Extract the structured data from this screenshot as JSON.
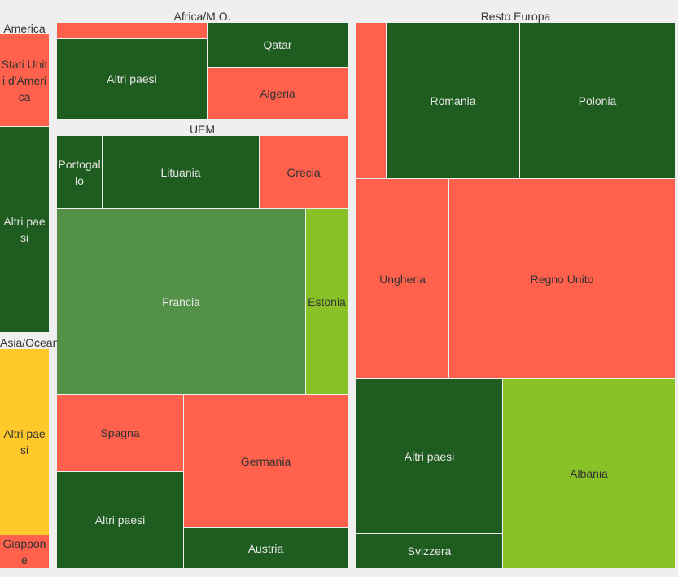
{
  "chart_data": {
    "type": "treemap",
    "colors": {
      "dark_green": "#1f5c1f",
      "medium_green": "#529147",
      "lime": "#88c226",
      "red": "#ff614d",
      "yellow": "#ffc82b"
    },
    "groups": [
      {
        "name": "America",
        "items": [
          {
            "label": "Stati Uniti d'America",
            "color": "red"
          },
          {
            "label": "Altri paesi",
            "color": "dark_green"
          }
        ]
      },
      {
        "name": "Asia/Oceania",
        "items": [
          {
            "label": "Altri paesi",
            "color": "yellow"
          },
          {
            "label": "Giappone",
            "color": "red"
          }
        ]
      },
      {
        "name": "Africa/M.O.",
        "items": [
          {
            "label": "",
            "color": "red"
          },
          {
            "label": "Altri paesi",
            "color": "dark_green"
          },
          {
            "label": "Qatar",
            "color": "dark_green"
          },
          {
            "label": "Algeria",
            "color": "red"
          }
        ]
      },
      {
        "name": "UEM",
        "items": [
          {
            "label": "Portogallo",
            "color": "dark_green"
          },
          {
            "label": "Lituania",
            "color": "dark_green"
          },
          {
            "label": "Grecia",
            "color": "red"
          },
          {
            "label": "Francia",
            "color": "medium_green"
          },
          {
            "label": "Estonia",
            "color": "lime"
          },
          {
            "label": "Spagna",
            "color": "red"
          },
          {
            "label": "Altri paesi",
            "color": "dark_green"
          },
          {
            "label": "Germania",
            "color": "red"
          },
          {
            "label": "Austria",
            "color": "dark_green"
          }
        ]
      },
      {
        "name": "Resto Europa",
        "items": [
          {
            "label": "",
            "color": "red"
          },
          {
            "label": "Romania",
            "color": "dark_green"
          },
          {
            "label": "Polonia",
            "color": "dark_green"
          },
          {
            "label": "Ungheria",
            "color": "red"
          },
          {
            "label": "Regno Unito",
            "color": "red"
          },
          {
            "label": "Altri paesi",
            "color": "dark_green"
          },
          {
            "label": "Svizzera",
            "color": "dark_green"
          },
          {
            "label": "Albania",
            "color": "lime"
          }
        ]
      }
    ]
  }
}
